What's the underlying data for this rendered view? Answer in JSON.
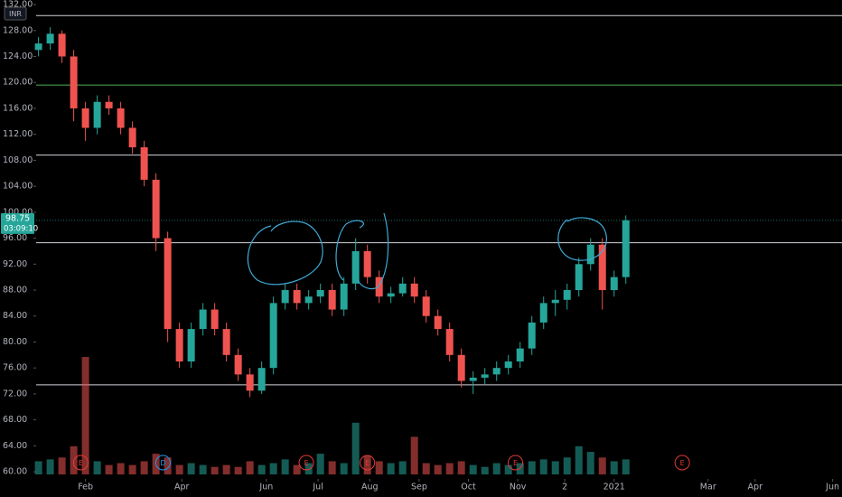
{
  "chart_data": {
    "type": "candlestick",
    "currency": "INR",
    "countdown": "03:09:10",
    "up_color": "#26a69a",
    "down_color": "#ef5350",
    "ylim": [
      58.9,
      132.7
    ],
    "yticks": [
      {
        "value": 60,
        "label": "60.00"
      },
      {
        "value": 64,
        "label": "64.00"
      },
      {
        "value": 68,
        "label": "68.00"
      },
      {
        "value": 72,
        "label": "72.00"
      },
      {
        "value": 76,
        "label": "76.00"
      },
      {
        "value": 80,
        "label": "80.00"
      },
      {
        "value": 84,
        "label": "84.00"
      },
      {
        "value": 88,
        "label": "88.00"
      },
      {
        "value": 92,
        "label": "92.00"
      },
      {
        "value": 96,
        "label": "96.00"
      },
      {
        "value": 100,
        "label": "100.00"
      },
      {
        "value": 104,
        "label": "104.00"
      },
      {
        "value": 108,
        "label": "108.00"
      },
      {
        "value": 112,
        "label": "112.00"
      },
      {
        "value": 116,
        "label": "116.00"
      },
      {
        "value": 120,
        "label": "120.00"
      },
      {
        "value": 124,
        "label": "124.00"
      },
      {
        "value": 128,
        "label": "128.00"
      },
      {
        "value": 132,
        "label": "132.00"
      }
    ],
    "xlim": [
      -1,
      342
    ],
    "xticks": [
      {
        "value": 20,
        "label": "Feb"
      },
      {
        "value": 61,
        "label": "Apr"
      },
      {
        "value": 97,
        "label": "Jun"
      },
      {
        "value": 119,
        "label": "Jul"
      },
      {
        "value": 141,
        "label": "Aug"
      },
      {
        "value": 162,
        "label": "Sep"
      },
      {
        "value": 183,
        "label": "Oct"
      },
      {
        "value": 204,
        "label": "Nov"
      },
      {
        "value": 224,
        "label": "2"
      },
      {
        "value": 245,
        "label": "2021"
      },
      {
        "value": 285,
        "label": "Mar"
      },
      {
        "value": 305,
        "label": "Apr"
      },
      {
        "value": 338,
        "label": "Jun"
      }
    ],
    "x": [
      0,
      5,
      10,
      15,
      20,
      25,
      30,
      35,
      40,
      45,
      50,
      55,
      60,
      65,
      70,
      75,
      80,
      85,
      90,
      95,
      100,
      105,
      110,
      115,
      120,
      125,
      130,
      135,
      140,
      145,
      150,
      155,
      160,
      165,
      170,
      175,
      180,
      185,
      190,
      195,
      200,
      205,
      210,
      215,
      220,
      225,
      230,
      235,
      240,
      245,
      250
    ],
    "open": [
      125,
      126,
      127.5,
      124,
      116,
      113,
      117,
      116,
      113,
      110,
      105,
      96,
      82,
      77,
      82,
      85,
      82,
      78,
      75,
      72.5,
      76,
      86,
      88,
      86,
      87,
      88,
      85,
      89,
      94,
      90,
      87,
      87.5,
      89,
      87,
      84,
      82,
      78,
      74,
      74.5,
      75,
      76,
      77,
      79,
      83,
      86,
      86.5,
      88,
      92,
      95,
      88,
      90
    ],
    "high": [
      127,
      128.5,
      128,
      125,
      117,
      118,
      118,
      117,
      114,
      111,
      106,
      97,
      83,
      83,
      86,
      86,
      83,
      79,
      76,
      77,
      87,
      89,
      89,
      88,
      89,
      89,
      90,
      96,
      95,
      91,
      88.5,
      90,
      90,
      88,
      85,
      83,
      79,
      75.5,
      76,
      77,
      78,
      80,
      84,
      87,
      88,
      89,
      93,
      96,
      96,
      91,
      99.5
    ],
    "low": [
      124,
      125,
      123,
      114,
      111,
      112,
      115,
      112,
      109,
      104,
      94,
      80,
      76,
      76,
      81,
      81,
      77,
      74,
      71.5,
      72,
      75,
      85,
      85,
      85,
      86,
      84,
      84,
      88,
      89,
      86,
      86,
      87,
      86,
      83,
      81,
      77,
      73,
      72,
      73.5,
      74,
      75,
      76,
      78,
      82,
      84,
      85,
      87,
      91,
      85,
      87,
      89
    ],
    "close": [
      126,
      127.5,
      124,
      116,
      113,
      117,
      116,
      113,
      110,
      105,
      96,
      82,
      77,
      82,
      85,
      82,
      78,
      75,
      72.5,
      76,
      86,
      88,
      86,
      87,
      88,
      85,
      89,
      94,
      90,
      87,
      87.5,
      89,
      87,
      84,
      82,
      78,
      74,
      74.5,
      75,
      76,
      77,
      79,
      83,
      86,
      86.5,
      88,
      92,
      95,
      88,
      90,
      98.75
    ],
    "last_price_label": "98.75",
    "volume": [
      14,
      16,
      18,
      30,
      125,
      14,
      10,
      12,
      10,
      14,
      22,
      18,
      10,
      12,
      10,
      8,
      10,
      8,
      14,
      10,
      12,
      16,
      10,
      12,
      22,
      14,
      12,
      55,
      20,
      14,
      12,
      14,
      40,
      12,
      10,
      12,
      14,
      10,
      8,
      12,
      10,
      12,
      14,
      16,
      14,
      18,
      30,
      24,
      18,
      14,
      16
    ],
    "hlines": [
      {
        "value": 130.3,
        "color": "#d1d4dc"
      },
      {
        "value": 119.6,
        "color": "#4caf50"
      },
      {
        "value": 108.8,
        "color": "#d1d4dc"
      },
      {
        "value": 95.3,
        "color": "#d1d4dc"
      },
      {
        "value": 73.4,
        "color": "#d1d4dc"
      }
    ],
    "events": [
      {
        "x": 18,
        "label": "E",
        "color": "#e53935"
      },
      {
        "x": 53,
        "label": "D",
        "color": "#2196f3"
      },
      {
        "x": 114,
        "label": "E",
        "color": "#e53935"
      },
      {
        "x": 140,
        "label": "E",
        "color": "#e53935"
      },
      {
        "x": 203,
        "label": "E",
        "color": "#e53935"
      },
      {
        "x": 274,
        "label": "E",
        "color": "#e53935"
      }
    ]
  }
}
